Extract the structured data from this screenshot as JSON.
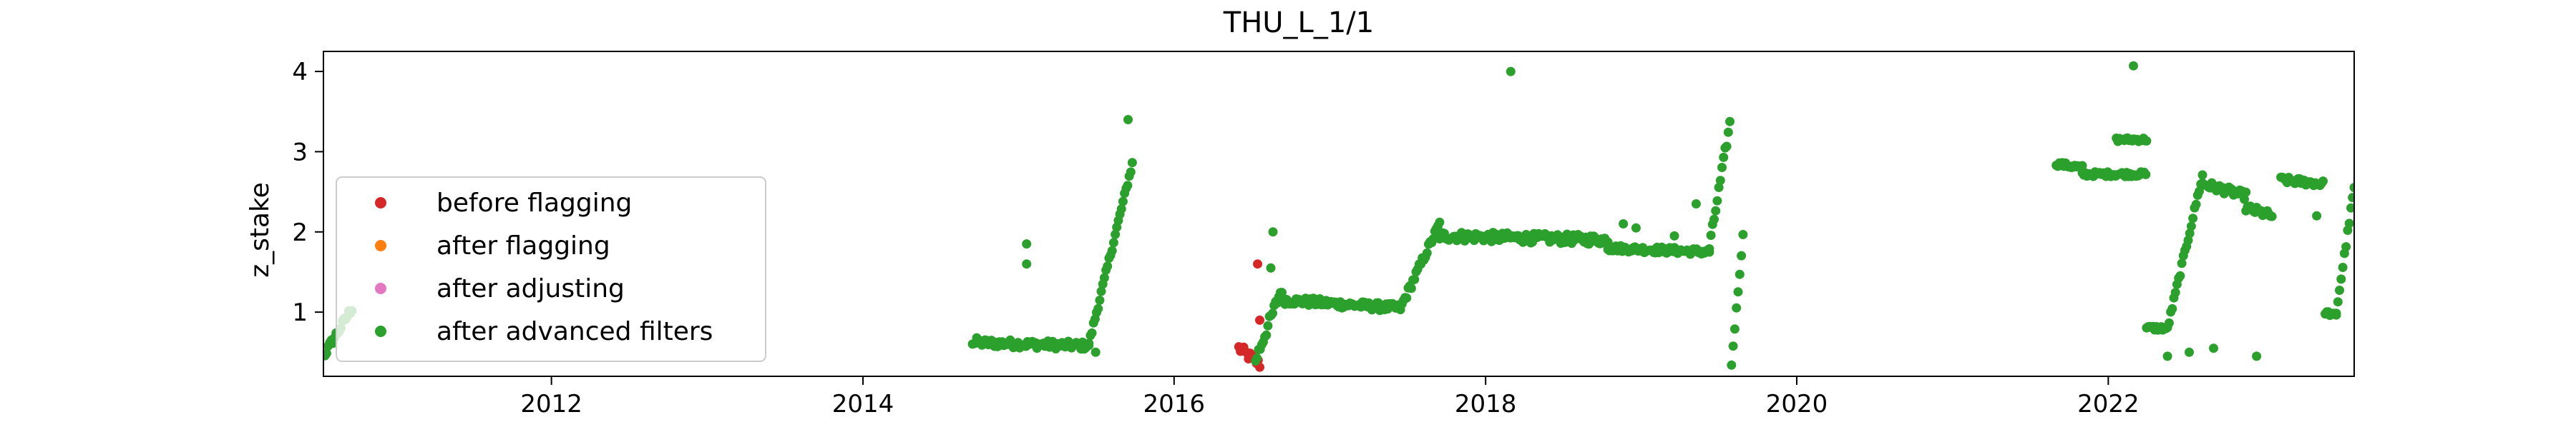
{
  "chart_data": {
    "type": "scatter",
    "title": "THU_L_1/1",
    "xlabel": "",
    "ylabel": "z_stake",
    "xlim": [
      "2010-07-15",
      "2023-08-01"
    ],
    "ylim": [
      0.2,
      4.25
    ],
    "x_ticks": [
      "2012",
      "2014",
      "2016",
      "2018",
      "2020",
      "2022"
    ],
    "y_ticks": [
      1,
      2,
      3,
      4
    ],
    "grid": false,
    "legend_position": "lower-left",
    "series": [
      {
        "name": "before flagging",
        "color": "#d62728",
        "segments": [
          {
            "from": "2016-06-01",
            "to": "2016-07-20",
            "y_from": 0.55,
            "y_to": 0.35,
            "spread": 0.12
          }
        ],
        "points": [
          {
            "x": "2016-07-15",
            "y": 1.6
          },
          {
            "x": "2016-07-20",
            "y": 0.9
          }
        ]
      },
      {
        "name": "after flagging",
        "color": "#ff7f0e",
        "segments": [],
        "points": []
      },
      {
        "name": "after adjusting",
        "color": "#e377c2",
        "segments": [],
        "points": []
      },
      {
        "name": "after advanced filters",
        "color": "#2ca02c",
        "segments": [
          {
            "from": "2010-07-15",
            "to": "2010-09-20",
            "y_from": 0.45,
            "y_to": 1.05,
            "spread": 0.1
          },
          {
            "from": "2014-09-15",
            "to": "2015-06-15",
            "y_from": 0.62,
            "y_to": 0.58,
            "spread": 0.1
          },
          {
            "from": "2015-06-15",
            "to": "2015-09-25",
            "y_from": 0.6,
            "y_to": 2.85,
            "spread": 0.08
          },
          {
            "from": "2016-07-10",
            "to": "2016-09-10",
            "y_from": 0.4,
            "y_to": 1.3,
            "spread": 0.15
          },
          {
            "from": "2016-09-10",
            "to": "2017-06-15",
            "y_from": 1.15,
            "y_to": 1.05,
            "spread": 0.1
          },
          {
            "from": "2017-06-15",
            "to": "2017-09-15",
            "y_from": 1.05,
            "y_to": 2.1,
            "spread": 0.1
          },
          {
            "from": "2017-09-15",
            "to": "2018-10-15",
            "y_from": 1.95,
            "y_to": 1.9,
            "spread": 0.12
          },
          {
            "from": "2018-10-15",
            "to": "2019-06-10",
            "y_from": 1.8,
            "y_to": 1.75,
            "spread": 0.08
          },
          {
            "from": "2019-06-10",
            "to": "2019-07-28",
            "y_from": 1.8,
            "y_to": 3.35,
            "spread": 0.12
          },
          {
            "from": "2019-08-01",
            "to": "2019-08-28",
            "y_from": 0.35,
            "y_to": 1.95,
            "spread": 0.05
          },
          {
            "from": "2021-09-01",
            "to": "2021-11-01",
            "y_from": 2.85,
            "y_to": 2.8,
            "spread": 0.06
          },
          {
            "from": "2021-11-01",
            "to": "2022-03-30",
            "y_from": 2.72,
            "y_to": 2.72,
            "spread": 0.06
          },
          {
            "from": "2022-01-20",
            "to": "2022-04-01",
            "y_from": 3.15,
            "y_to": 3.15,
            "spread": 0.05
          },
          {
            "from": "2022-04-01",
            "to": "2022-05-20",
            "y_from": 0.8,
            "y_to": 0.8,
            "spread": 0.06
          },
          {
            "from": "2022-05-20",
            "to": "2022-08-10",
            "y_from": 0.8,
            "y_to": 2.7,
            "spread": 0.08
          },
          {
            "from": "2022-08-10",
            "to": "2022-11-20",
            "y_from": 2.6,
            "y_to": 2.45,
            "spread": 0.1
          },
          {
            "from": "2022-11-20",
            "to": "2023-01-20",
            "y_from": 2.3,
            "y_to": 2.2,
            "spread": 0.1
          },
          {
            "from": "2023-02-10",
            "to": "2023-05-20",
            "y_from": 2.65,
            "y_to": 2.6,
            "spread": 0.08
          },
          {
            "from": "2023-05-25",
            "to": "2023-06-20",
            "y_from": 1.0,
            "y_to": 0.95,
            "spread": 0.05
          },
          {
            "from": "2023-06-20",
            "to": "2023-08-01",
            "y_from": 1.0,
            "y_to": 2.55,
            "spread": 0.08
          }
        ],
        "points": [
          {
            "x": "2015-01-20",
            "y": 1.85
          },
          {
            "x": "2015-01-20",
            "y": 1.6
          },
          {
            "x": "2015-09-15",
            "y": 3.4
          },
          {
            "x": "2015-07-01",
            "y": 0.5
          },
          {
            "x": "2016-08-15",
            "y": 1.55
          },
          {
            "x": "2016-08-20",
            "y": 2.0
          },
          {
            "x": "2018-03-01",
            "y": 4.0
          },
          {
            "x": "2018-11-20",
            "y": 2.1
          },
          {
            "x": "2018-12-20",
            "y": 2.05
          },
          {
            "x": "2019-05-10",
            "y": 2.35
          },
          {
            "x": "2019-03-20",
            "y": 1.95
          },
          {
            "x": "2022-03-01",
            "y": 4.07
          },
          {
            "x": "2022-05-20",
            "y": 0.45
          },
          {
            "x": "2022-07-10",
            "y": 0.5
          },
          {
            "x": "2022-09-05",
            "y": 0.55
          },
          {
            "x": "2022-12-15",
            "y": 0.45
          },
          {
            "x": "2023-05-05",
            "y": 2.2
          },
          {
            "x": "2014-09-25",
            "y": 0.68
          }
        ]
      }
    ]
  }
}
